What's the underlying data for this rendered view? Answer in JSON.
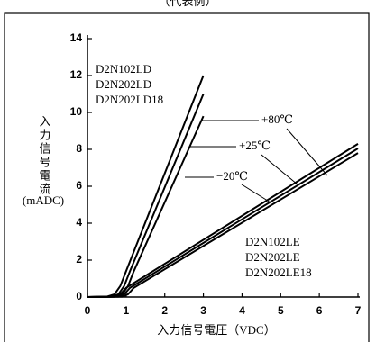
{
  "chart_data": {
    "type": "line",
    "title": "（代表例）",
    "xlabel": "入力信号電圧（VDC）",
    "ylabel": "入力信号電流",
    "ylabel_unit": "(mADC)",
    "xlim": [
      0,
      7
    ],
    "xticks": [
      0,
      1,
      2,
      3,
      4,
      5,
      6,
      7
    ],
    "ylim": [
      0,
      14
    ],
    "yticks": [
      0,
      2,
      4,
      6,
      8,
      10,
      12,
      14
    ],
    "grid": false,
    "series": [
      {
        "color": "#000000",
        "x": [
          0,
          0.5,
          0.7,
          0.85,
          1.0,
          3.0
        ],
        "values": [
          0,
          0.02,
          0.15,
          0.6,
          1.4,
          12
        ]
      },
      {
        "color": "#000000",
        "x": [
          0,
          0.6,
          0.8,
          0.95,
          1.1,
          3.0
        ],
        "values": [
          0,
          0.02,
          0.15,
          0.6,
          1.4,
          11
        ]
      },
      {
        "color": "#000000",
        "x": [
          0,
          0.7,
          0.9,
          1.05,
          1.2,
          3.0
        ],
        "values": [
          0,
          0.02,
          0.15,
          0.6,
          1.4,
          9.8
        ]
      },
      {
        "color": "#000000",
        "x": [
          0,
          0.7,
          0.85,
          1.0,
          7
        ],
        "values": [
          0,
          0.02,
          0.15,
          0.5,
          8.3
        ]
      },
      {
        "color": "#000000",
        "x": [
          0,
          0.8,
          0.95,
          1.1,
          7
        ],
        "values": [
          0,
          0.02,
          0.15,
          0.5,
          8.05
        ]
      },
      {
        "color": "#000000",
        "x": [
          0,
          0.9,
          1.05,
          1.2,
          7
        ],
        "values": [
          0,
          0.02,
          0.15,
          0.5,
          7.8
        ]
      }
    ],
    "ld_devices": [
      "D2N102LD",
      "D2N202LD",
      "D2N202LD18"
    ],
    "le_devices": [
      "D2N102LE",
      "D2N202LE",
      "D2N202LE18"
    ],
    "temperatures": [
      "+80℃",
      "+25℃",
      "−20℃"
    ]
  }
}
